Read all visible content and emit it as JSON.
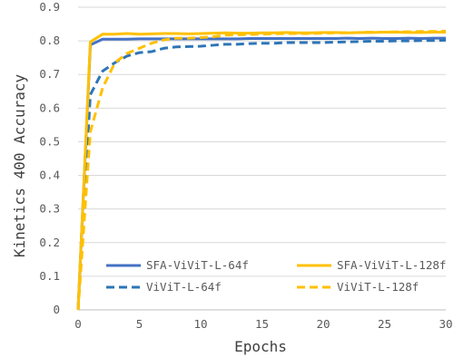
{
  "chart_data": {
    "type": "line",
    "title": "",
    "xlabel": "Epochs",
    "ylabel": "Kinetics 400 Accuracy",
    "xlim": [
      0,
      30
    ],
    "ylim": [
      0,
      0.9
    ],
    "x_ticks": [
      "0",
      "5",
      "10",
      "15",
      "20",
      "25",
      "30"
    ],
    "y_ticks": [
      "0",
      "0.1",
      "0.2",
      "0.3",
      "0.4",
      "0.5",
      "0.6",
      "0.7",
      "0.8",
      "0.9"
    ],
    "grid": "horizontal",
    "legend_position": "lower-right",
    "x": [
      0,
      1,
      2,
      3,
      4,
      5,
      6,
      7,
      8,
      9,
      10,
      11,
      12,
      13,
      14,
      15,
      16,
      17,
      18,
      19,
      20,
      21,
      22,
      23,
      24,
      25,
      26,
      27,
      28,
      29,
      30
    ],
    "series": [
      {
        "name": "SFA-ViViT-L-64f",
        "color": "#4472C4",
        "dash": "solid",
        "values": [
          0.0,
          0.788,
          0.805,
          0.805,
          0.805,
          0.806,
          0.806,
          0.806,
          0.806,
          0.806,
          0.806,
          0.806,
          0.806,
          0.806,
          0.807,
          0.807,
          0.807,
          0.807,
          0.807,
          0.807,
          0.807,
          0.807,
          0.808,
          0.807,
          0.808,
          0.807,
          0.807,
          0.808,
          0.807,
          0.808,
          0.808
        ]
      },
      {
        "name": "SFA-ViViT-L-128f",
        "color": "#FFC000",
        "dash": "solid",
        "values": [
          0.0,
          0.797,
          0.82,
          0.82,
          0.822,
          0.82,
          0.821,
          0.822,
          0.822,
          0.821,
          0.822,
          0.823,
          0.824,
          0.823,
          0.823,
          0.824,
          0.824,
          0.825,
          0.824,
          0.824,
          0.825,
          0.825,
          0.824,
          0.825,
          0.825,
          0.826,
          0.826,
          0.825,
          0.825,
          0.826,
          0.826
        ]
      },
      {
        "name": "ViViT-L-64f",
        "color": "#2E75B6",
        "dash": "dashed",
        "values": [
          0.0,
          0.64,
          0.71,
          0.735,
          0.755,
          0.765,
          0.768,
          0.778,
          0.782,
          0.783,
          0.784,
          0.787,
          0.79,
          0.79,
          0.792,
          0.793,
          0.793,
          0.795,
          0.795,
          0.795,
          0.795,
          0.796,
          0.797,
          0.798,
          0.799,
          0.799,
          0.8,
          0.8,
          0.801,
          0.801,
          0.802
        ]
      },
      {
        "name": "ViViT-L-128f",
        "color": "#FFC000",
        "dash": "dashed",
        "values": [
          0.0,
          0.53,
          0.66,
          0.735,
          0.763,
          0.778,
          0.793,
          0.803,
          0.808,
          0.808,
          0.81,
          0.812,
          0.817,
          0.818,
          0.819,
          0.82,
          0.821,
          0.822,
          0.822,
          0.822,
          0.823,
          0.824,
          0.824,
          0.825,
          0.826,
          0.826,
          0.827,
          0.827,
          0.828,
          0.828,
          0.829
        ]
      }
    ]
  }
}
